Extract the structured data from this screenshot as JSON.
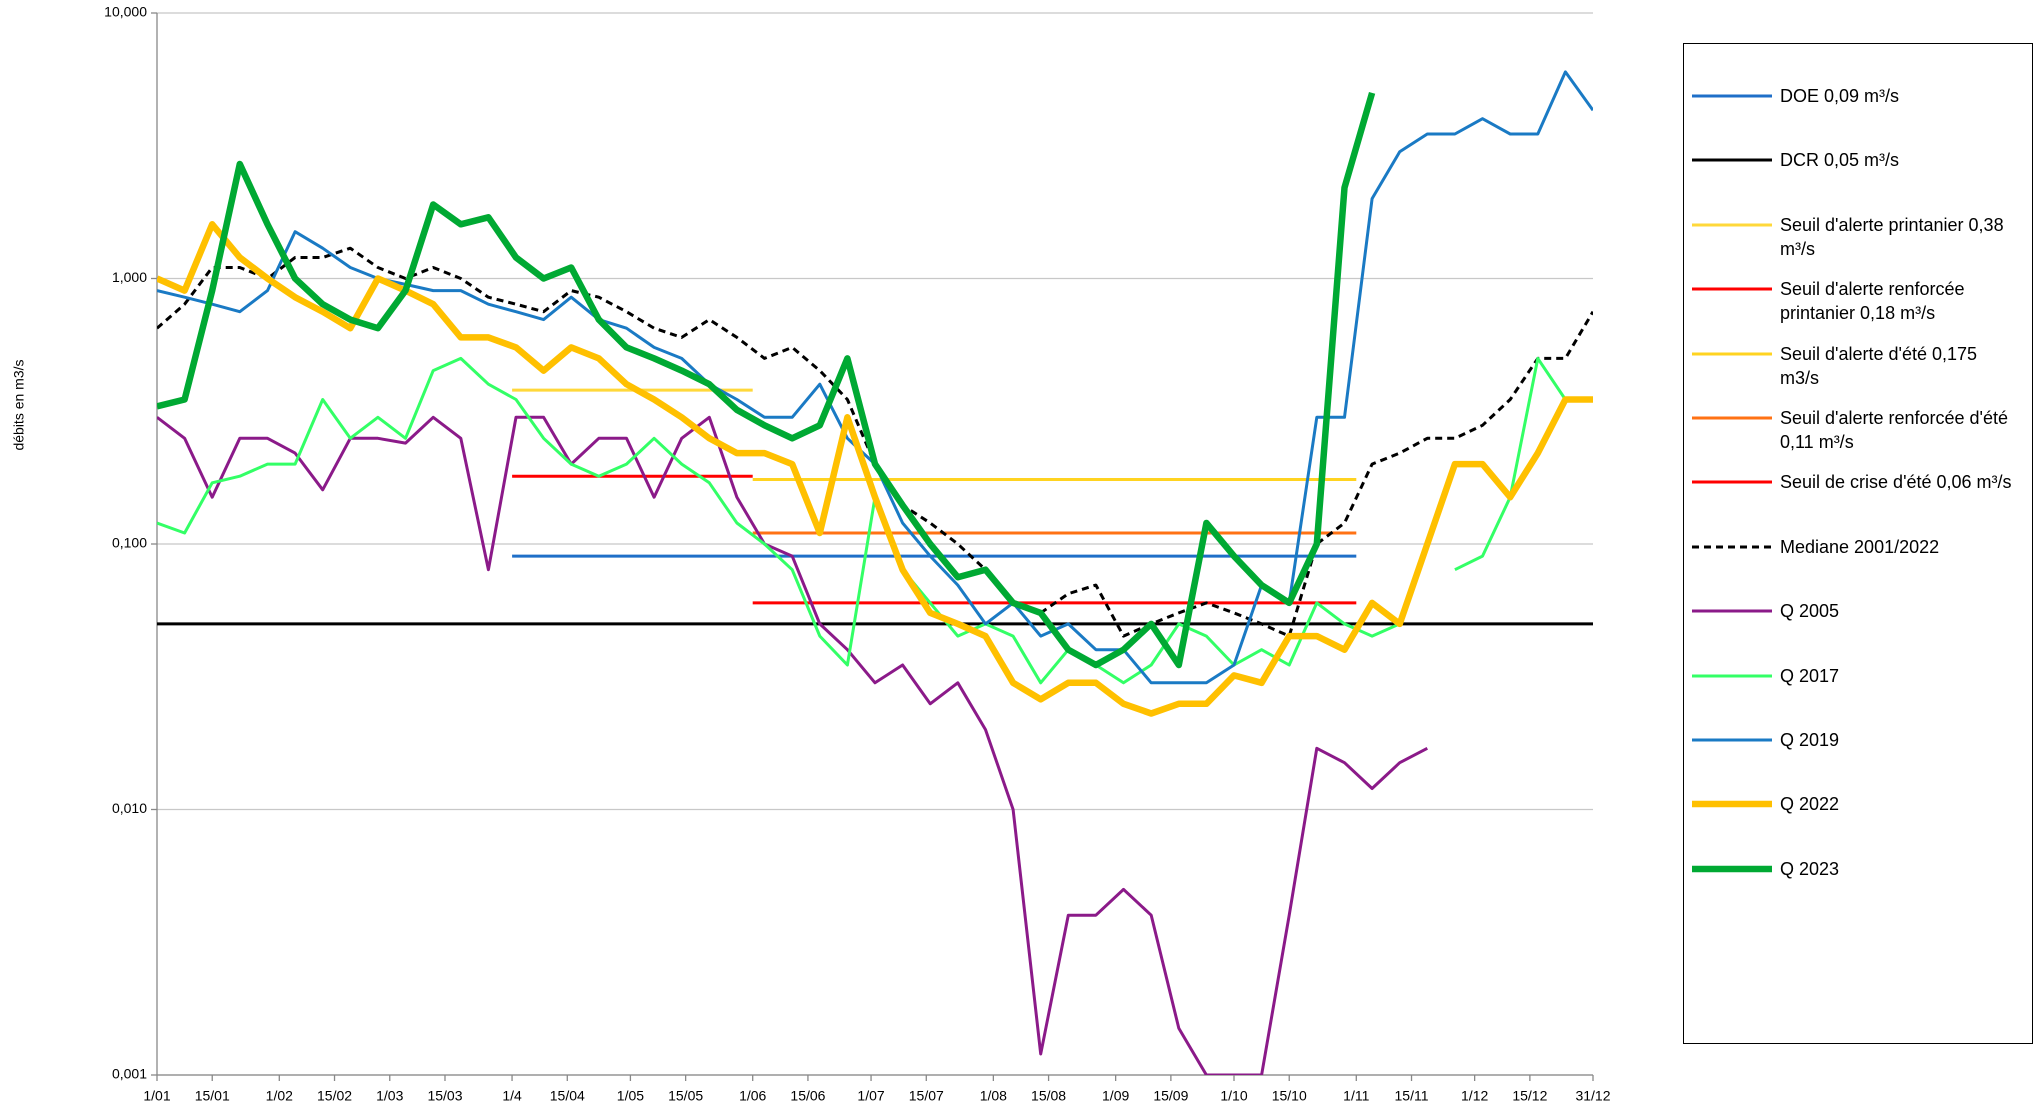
{
  "chart_data": {
    "type": "line",
    "y_label": "débits en m3/s",
    "log_y": true,
    "grid": true,
    "legend": "right",
    "xlim": [
      1,
      365
    ],
    "xticks": [
      {
        "value": 1,
        "label": "1/01"
      },
      {
        "value": 15,
        "label": "15/01"
      },
      {
        "value": 32,
        "label": "1/02"
      },
      {
        "value": 46,
        "label": "15/02"
      },
      {
        "value": 60,
        "label": "1/03"
      },
      {
        "value": 74,
        "label": "15/03"
      },
      {
        "value": 91,
        "label": "1/4"
      },
      {
        "value": 105,
        "label": "15/04"
      },
      {
        "value": 121,
        "label": "1/05"
      },
      {
        "value": 135,
        "label": "15/05"
      },
      {
        "value": 152,
        "label": "1/06"
      },
      {
        "value": 166,
        "label": "15/06"
      },
      {
        "value": 182,
        "label": "1/07"
      },
      {
        "value": 196,
        "label": "15/07"
      },
      {
        "value": 213,
        "label": "1/08"
      },
      {
        "value": 227,
        "label": "15/08"
      },
      {
        "value": 244,
        "label": "1/09"
      },
      {
        "value": 258,
        "label": "15/09"
      },
      {
        "value": 274,
        "label": "1/10"
      },
      {
        "value": 288,
        "label": "15/10"
      },
      {
        "value": 305,
        "label": "1/11"
      },
      {
        "value": 319,
        "label": "15/11"
      },
      {
        "value": 335,
        "label": "1/12"
      },
      {
        "value": 349,
        "label": "15/12"
      },
      {
        "value": 365,
        "label": "31/12"
      }
    ],
    "ylim": [
      0.001,
      10
    ],
    "yticks": [
      {
        "value": 0.001,
        "label": "0,001"
      },
      {
        "value": 0.01,
        "label": "0,010"
      },
      {
        "value": 0.1,
        "label": "0,100"
      },
      {
        "value": 1,
        "label": "1,000"
      },
      {
        "value": 10,
        "label": "10,000"
      }
    ],
    "x": [
      1,
      8,
      15,
      22,
      29,
      36,
      43,
      50,
      57,
      64,
      71,
      78,
      85,
      92,
      99,
      106,
      113,
      120,
      127,
      134,
      141,
      148,
      155,
      162,
      169,
      176,
      183,
      190,
      197,
      204,
      211,
      218,
      225,
      232,
      239,
      246,
      253,
      260,
      267,
      274,
      281,
      288,
      295,
      302,
      309,
      316,
      323,
      330,
      337,
      344,
      351,
      358,
      365
    ],
    "series": [
      {
        "name": "DOE 0,09 m³/s",
        "color": "#1f6fc8",
        "x": [
          91,
          305
        ],
        "values": [
          0.09,
          0.09
        ]
      },
      {
        "name": "DCR 0,05 m³/s",
        "color": "#000000",
        "x": [
          1,
          365
        ],
        "values": [
          0.05,
          0.05
        ]
      },
      {
        "name": "Seuil d'alerte printanier 0,38 m³/s",
        "color": "#ffd83a",
        "x": [
          91,
          152
        ],
        "values": [
          0.38,
          0.38
        ]
      },
      {
        "name": "Seuil d'alerte renforcée printanier 0,18 m³/s",
        "color": "#ff0000",
        "x": [
          91,
          152
        ],
        "values": [
          0.18,
          0.18
        ]
      },
      {
        "name": "Seuil d'alerte d'été 0,175 m3/s",
        "color": "#ffd320",
        "x": [
          152,
          305
        ],
        "values": [
          0.175,
          0.175
        ]
      },
      {
        "name": "Seuil d'alerte renforcée d'été 0,11 m³/s",
        "color": "#ff7214",
        "x": [
          152,
          305
        ],
        "values": [
          0.11,
          0.11
        ]
      },
      {
        "name": "Seuil de crise d'été 0,06 m³/s",
        "color": "#ff0000",
        "x": [
          152,
          305
        ],
        "values": [
          0.06,
          0.06
        ]
      },
      {
        "name": "Mediane 2001/2022",
        "color": "#000000",
        "dashed": true,
        "values": [
          0.65,
          0.8,
          1.1,
          1.1,
          1.0,
          1.2,
          1.2,
          1.3,
          1.1,
          1.0,
          1.1,
          1.0,
          0.85,
          0.8,
          0.75,
          0.9,
          0.85,
          0.75,
          0.65,
          0.6,
          0.7,
          0.6,
          0.5,
          0.55,
          0.45,
          0.35,
          0.2,
          0.14,
          0.12,
          0.1,
          0.08,
          0.06,
          0.055,
          0.065,
          0.07,
          0.045,
          0.05,
          0.055,
          0.06,
          0.055,
          0.05,
          0.045,
          0.1,
          0.12,
          0.2,
          0.22,
          0.25,
          0.25,
          0.28,
          0.35,
          0.5,
          0.5,
          0.75
        ]
      },
      {
        "name": "Q 2005",
        "color": "#8b1a89",
        "values": [
          0.3,
          0.25,
          0.15,
          0.25,
          0.25,
          0.22,
          0.16,
          0.25,
          0.25,
          0.24,
          0.3,
          0.25,
          0.08,
          0.3,
          0.3,
          0.2,
          0.25,
          0.25,
          0.15,
          0.25,
          0.3,
          0.15,
          0.1,
          0.09,
          0.05,
          0.04,
          0.03,
          0.035,
          0.025,
          0.03,
          0.02,
          0.01,
          0.0012,
          0.004,
          0.004,
          0.005,
          0.004,
          0.0015,
          0.001,
          0.001,
          0.001,
          0.004,
          0.017,
          0.015,
          0.012,
          0.015,
          0.017,
          null,
          null,
          null,
          null,
          null,
          null
        ]
      },
      {
        "name": "Q 2017",
        "color": "#33ff66",
        "values": [
          0.12,
          0.11,
          0.17,
          0.18,
          0.2,
          0.2,
          0.35,
          0.25,
          0.3,
          0.25,
          0.45,
          0.5,
          0.4,
          0.35,
          0.25,
          0.2,
          0.18,
          0.2,
          0.25,
          0.2,
          0.17,
          0.12,
          0.1,
          0.08,
          0.045,
          0.035,
          0.15,
          0.08,
          0.06,
          0.045,
          0.05,
          0.045,
          0.03,
          0.04,
          0.035,
          0.03,
          0.035,
          0.05,
          0.045,
          0.035,
          0.04,
          0.035,
          0.06,
          0.05,
          0.045,
          0.05,
          null,
          0.08,
          0.09,
          0.15,
          0.5,
          0.35,
          0.35
        ]
      },
      {
        "name": "Q 2019",
        "color": "#1a7ac4",
        "values": [
          0.9,
          0.85,
          0.8,
          0.75,
          0.9,
          1.5,
          1.3,
          1.1,
          1.0,
          0.95,
          0.9,
          0.9,
          0.8,
          0.75,
          0.7,
          0.85,
          0.7,
          0.65,
          0.55,
          0.5,
          0.4,
          0.35,
          0.3,
          0.3,
          0.4,
          0.25,
          0.2,
          0.12,
          0.09,
          0.07,
          0.05,
          0.06,
          0.045,
          0.05,
          0.04,
          0.04,
          0.03,
          0.03,
          0.03,
          0.035,
          0.07,
          0.06,
          0.3,
          0.3,
          2.0,
          3.0,
          3.5,
          3.5,
          4.0,
          3.5,
          3.5,
          6.0,
          4.3
        ]
      },
      {
        "name": "Q 2022",
        "color": "#ffc000",
        "bold": true,
        "values": [
          1.0,
          0.9,
          1.6,
          1.2,
          1.0,
          0.85,
          0.75,
          0.65,
          1.0,
          0.9,
          0.8,
          0.6,
          0.6,
          0.55,
          0.45,
          0.55,
          0.5,
          0.4,
          0.35,
          0.3,
          0.25,
          0.22,
          0.22,
          0.2,
          0.11,
          0.3,
          0.15,
          0.08,
          0.055,
          0.05,
          0.045,
          0.03,
          0.026,
          0.03,
          0.03,
          0.025,
          0.023,
          0.025,
          0.025,
          0.032,
          0.03,
          0.045,
          0.045,
          0.04,
          0.06,
          0.05,
          0.1,
          0.2,
          0.2,
          0.15,
          0.22,
          0.35,
          0.35
        ]
      },
      {
        "name": "Q 2023",
        "color": "#00a933",
        "bold": true,
        "values": [
          0.33,
          0.35,
          0.9,
          2.7,
          1.6,
          1.0,
          0.8,
          0.7,
          0.65,
          0.9,
          1.9,
          1.6,
          1.7,
          1.2,
          1.0,
          1.1,
          0.7,
          0.55,
          0.5,
          0.45,
          0.4,
          0.32,
          0.28,
          0.25,
          0.28,
          0.5,
          0.2,
          0.14,
          0.1,
          0.075,
          0.08,
          0.06,
          0.055,
          0.04,
          0.035,
          0.04,
          0.05,
          0.035,
          0.12,
          0.09,
          0.07,
          0.06,
          0.1,
          2.2,
          5.0,
          null,
          null,
          null,
          null,
          null,
          null,
          null,
          null
        ]
      }
    ]
  }
}
